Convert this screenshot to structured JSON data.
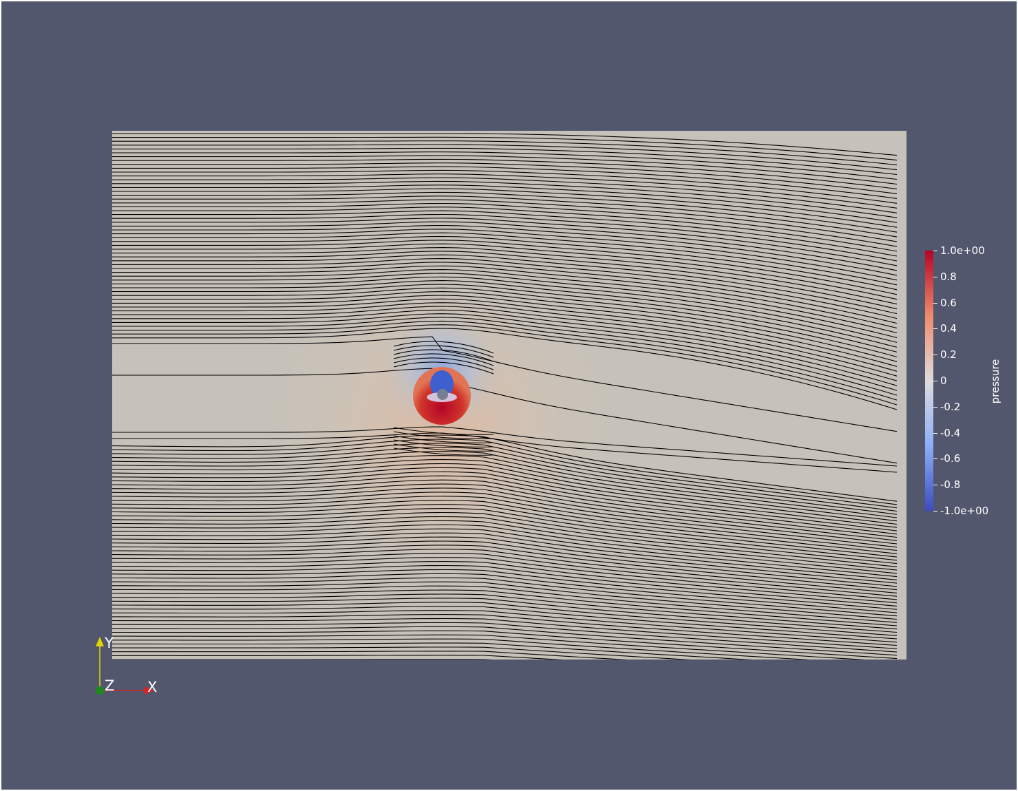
{
  "colors": {
    "background": "#52576e",
    "streamline": "#000000",
    "domain_base": "#c7c2b9",
    "x_axis": "#e0201f",
    "y_axis": "#e3d300",
    "z_axis": "#1a8a1a"
  },
  "colorbar": {
    "title": "pressure",
    "colormap": "cool-to-warm",
    "range": [
      -1.0,
      1.0
    ],
    "ticks": [
      {
        "value": 1.0,
        "label": "1.0e+00"
      },
      {
        "value": 0.8,
        "label": "0.8"
      },
      {
        "value": 0.6,
        "label": "0.6"
      },
      {
        "value": 0.4,
        "label": "0.4"
      },
      {
        "value": 0.2,
        "label": "0.2"
      },
      {
        "value": 0.0,
        "label": "0"
      },
      {
        "value": -0.2,
        "label": "-0.2"
      },
      {
        "value": -0.4,
        "label": "-0.4"
      },
      {
        "value": -0.6,
        "label": "-0.6"
      },
      {
        "value": -0.8,
        "label": "-0.8"
      },
      {
        "value": -1.0,
        "label": "-1.0e+00"
      }
    ]
  },
  "orientation_axes": {
    "x_label": "X",
    "y_label": "Y",
    "z_label": "Z"
  }
}
